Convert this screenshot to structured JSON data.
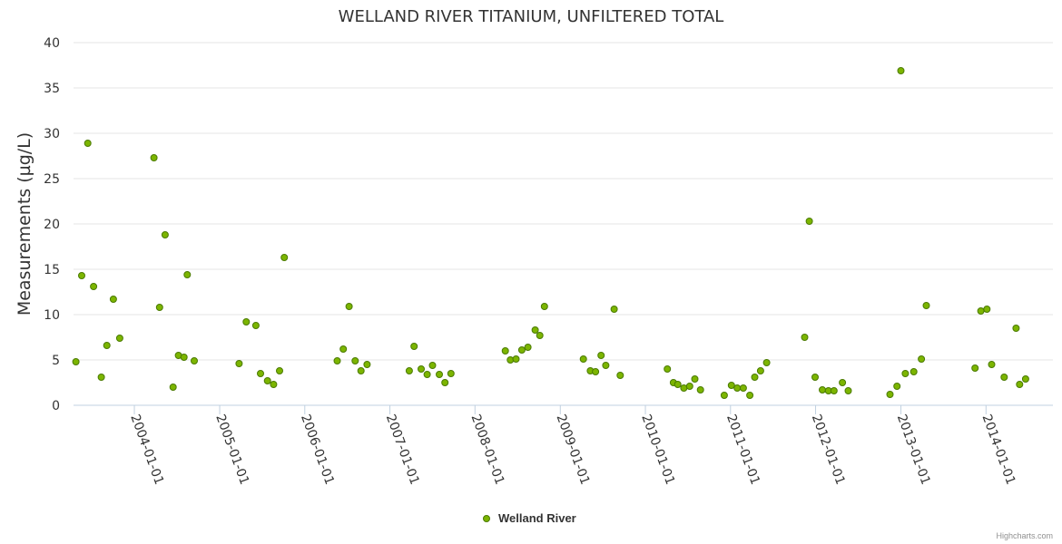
{
  "chart_data": {
    "type": "scatter",
    "title": "WELLAND RIVER TITANIUM, UNFILTERED TOTAL",
    "xlabel": "",
    "ylabel": "Measurements (µg/L)",
    "ylim": [
      0,
      40
    ],
    "yticks": [
      0,
      5,
      10,
      15,
      20,
      25,
      30,
      35,
      40
    ],
    "xlim": [
      "2003-04-15",
      "2014-10-15"
    ],
    "xticks": [
      "2004-01-01",
      "2005-01-01",
      "2006-01-01",
      "2007-01-01",
      "2008-01-01",
      "2009-01-01",
      "2010-01-01",
      "2011-01-01",
      "2012-01-01",
      "2013-01-01",
      "2014-01-01"
    ],
    "grid": true,
    "legend": "bottom-center",
    "colors": {
      "marker": "#7cb500",
      "marker_stroke": "#4a7a00",
      "grid": "#e6e6e6"
    },
    "series": [
      {
        "name": "Welland River",
        "points": [
          [
            "2003-04-25",
            4.8
          ],
          [
            "2003-05-20",
            14.3
          ],
          [
            "2003-06-15",
            28.9
          ],
          [
            "2003-07-10",
            13.1
          ],
          [
            "2003-08-12",
            3.1
          ],
          [
            "2003-09-05",
            6.6
          ],
          [
            "2003-10-03",
            11.7
          ],
          [
            "2003-10-30",
            7.4
          ],
          [
            "2004-03-25",
            27.3
          ],
          [
            "2004-04-18",
            10.8
          ],
          [
            "2004-05-12",
            18.8
          ],
          [
            "2004-06-15",
            2.0
          ],
          [
            "2004-07-08",
            5.5
          ],
          [
            "2004-08-01",
            5.3
          ],
          [
            "2004-08-15",
            14.4
          ],
          [
            "2004-09-14",
            4.9
          ],
          [
            "2005-03-25",
            4.6
          ],
          [
            "2005-04-25",
            9.2
          ],
          [
            "2005-06-05",
            8.8
          ],
          [
            "2005-06-25",
            3.5
          ],
          [
            "2005-07-25",
            2.7
          ],
          [
            "2005-08-20",
            2.3
          ],
          [
            "2005-09-15",
            3.8
          ],
          [
            "2005-10-05",
            16.3
          ],
          [
            "2006-05-20",
            4.9
          ],
          [
            "2006-06-15",
            6.2
          ],
          [
            "2006-07-10",
            10.9
          ],
          [
            "2006-08-05",
            4.9
          ],
          [
            "2006-08-30",
            3.8
          ],
          [
            "2006-09-25",
            4.5
          ],
          [
            "2007-03-25",
            3.8
          ],
          [
            "2007-04-15",
            6.5
          ],
          [
            "2007-05-15",
            4.0
          ],
          [
            "2007-06-10",
            3.4
          ],
          [
            "2007-07-03",
            4.4
          ],
          [
            "2007-08-01",
            3.4
          ],
          [
            "2007-08-25",
            2.5
          ],
          [
            "2007-09-20",
            3.5
          ],
          [
            "2008-05-10",
            6.0
          ],
          [
            "2008-06-01",
            5.0
          ],
          [
            "2008-06-25",
            5.1
          ],
          [
            "2008-07-20",
            6.1
          ],
          [
            "2008-08-15",
            6.4
          ],
          [
            "2008-09-15",
            8.3
          ],
          [
            "2008-10-05",
            7.7
          ],
          [
            "2008-10-25",
            10.9
          ],
          [
            "2009-04-10",
            5.1
          ],
          [
            "2009-05-10",
            3.8
          ],
          [
            "2009-06-01",
            3.7
          ],
          [
            "2009-06-25",
            5.5
          ],
          [
            "2009-07-15",
            4.4
          ],
          [
            "2009-08-20",
            10.6
          ],
          [
            "2009-09-15",
            3.3
          ],
          [
            "2010-04-05",
            4.0
          ],
          [
            "2010-05-01",
            2.5
          ],
          [
            "2010-05-20",
            2.3
          ],
          [
            "2010-06-15",
            1.9
          ],
          [
            "2010-07-10",
            2.1
          ],
          [
            "2010-08-01",
            2.9
          ],
          [
            "2010-08-25",
            1.7
          ],
          [
            "2010-12-05",
            1.1
          ],
          [
            "2011-01-05",
            2.2
          ],
          [
            "2011-01-30",
            1.9
          ],
          [
            "2011-02-25",
            1.9
          ],
          [
            "2011-03-25",
            1.1
          ],
          [
            "2011-04-15",
            3.1
          ],
          [
            "2011-05-10",
            3.8
          ],
          [
            "2011-06-05",
            4.7
          ],
          [
            "2011-11-15",
            7.5
          ],
          [
            "2011-12-05",
            20.3
          ],
          [
            "2011-12-30",
            3.1
          ],
          [
            "2012-01-30",
            1.7
          ],
          [
            "2012-02-25",
            1.6
          ],
          [
            "2012-03-20",
            1.6
          ],
          [
            "2012-04-25",
            2.5
          ],
          [
            "2012-05-20",
            1.6
          ],
          [
            "2012-11-15",
            1.2
          ],
          [
            "2012-12-15",
            2.1
          ],
          [
            "2013-01-01",
            36.9
          ],
          [
            "2013-01-20",
            3.5
          ],
          [
            "2013-02-25",
            3.7
          ],
          [
            "2013-03-30",
            5.1
          ],
          [
            "2013-04-20",
            11.0
          ],
          [
            "2013-11-15",
            4.1
          ],
          [
            "2013-12-10",
            10.4
          ],
          [
            "2014-01-05",
            10.6
          ],
          [
            "2014-01-25",
            4.5
          ],
          [
            "2014-03-20",
            3.1
          ],
          [
            "2014-05-10",
            8.5
          ],
          [
            "2014-05-25",
            2.3
          ],
          [
            "2014-06-20",
            2.9
          ]
        ]
      }
    ]
  },
  "credits": "Highcharts.com"
}
